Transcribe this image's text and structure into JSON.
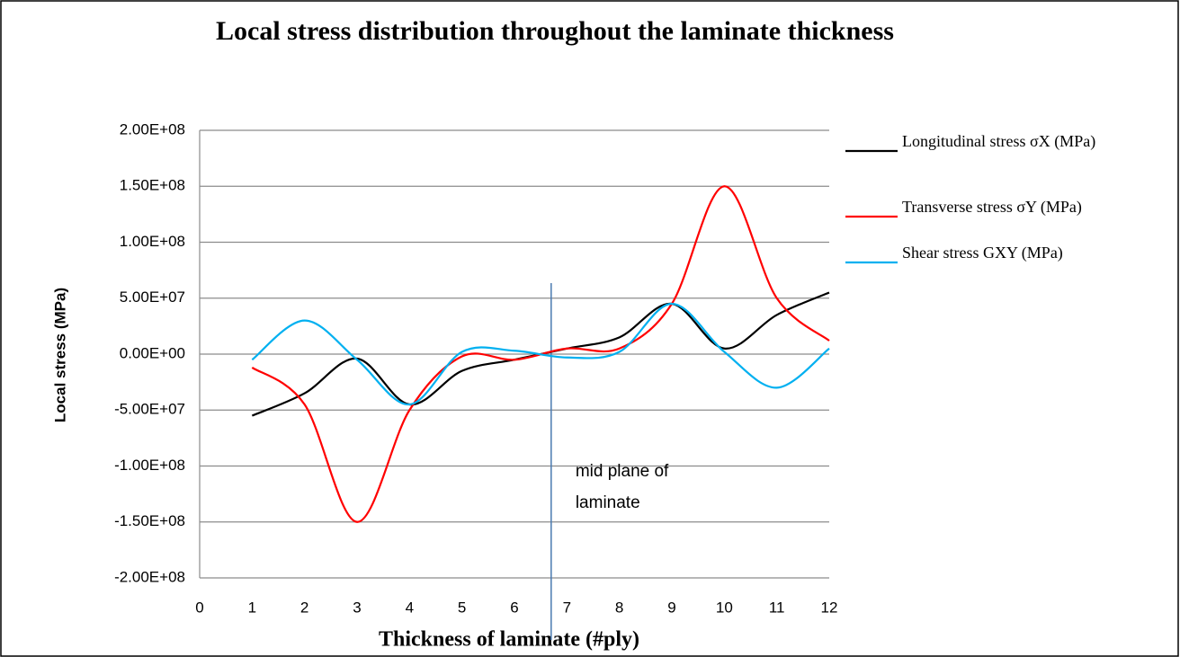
{
  "chart_data": {
    "type": "line",
    "title": "Local stress distribution throughout the laminate thickness",
    "x_label": "Thickness of laminate (#ply)",
    "y_label": "Local stress (MPa)",
    "x": [
      1,
      2,
      3,
      4,
      5,
      6,
      7,
      8,
      9,
      10,
      11,
      12
    ],
    "series": [
      {
        "name": "Longitudinal stress σX (MPa)",
        "color": "#000000",
        "values": [
          -55000000,
          -35000000,
          -4000000,
          -45000000,
          -15000000,
          -5000000,
          5000000,
          15000000,
          45000000,
          5000000,
          35000000,
          55000000
        ]
      },
      {
        "name": "Transverse stress σY (MPa)",
        "color": "#ff0000",
        "values": [
          -12000000,
          -45000000,
          -150000000,
          -50000000,
          -2000000,
          -5000000,
          5000000,
          5000000,
          45000000,
          150000000,
          50000000,
          12000000
        ]
      },
      {
        "name": "Shear stress  GXY (MPa)",
        "color": "#00b0f0",
        "values": [
          -5000000,
          30000000,
          -5000000,
          -45000000,
          2000000,
          3000000,
          -3000000,
          2000000,
          45000000,
          2000000,
          -30000000,
          5000000
        ]
      }
    ],
    "xlim": [
      0,
      12
    ],
    "xticks": [
      0,
      1,
      2,
      3,
      4,
      5,
      6,
      7,
      8,
      9,
      10,
      11,
      12
    ],
    "ylim": [
      -200000000,
      200000000
    ],
    "yticks": [
      {
        "value": -200000000,
        "label": "-2.00E+08"
      },
      {
        "value": -150000000,
        "label": "-1.50E+08"
      },
      {
        "value": -100000000,
        "label": "-1.00E+08"
      },
      {
        "value": -50000000,
        "label": "-5.00E+07"
      },
      {
        "value": 0,
        "label": "0.00E+00"
      },
      {
        "value": 50000000,
        "label": "5.00E+07"
      },
      {
        "value": 100000000,
        "label": "1.00E+08"
      },
      {
        "value": 150000000,
        "label": "1.50E+08"
      },
      {
        "value": 200000000,
        "label": "2.00E+08"
      }
    ],
    "grid": true,
    "legend": "right",
    "annotation": {
      "text": [
        "mid plane of",
        "laminate"
      ],
      "x": 6.7,
      "color": "#4a7ab0"
    }
  }
}
